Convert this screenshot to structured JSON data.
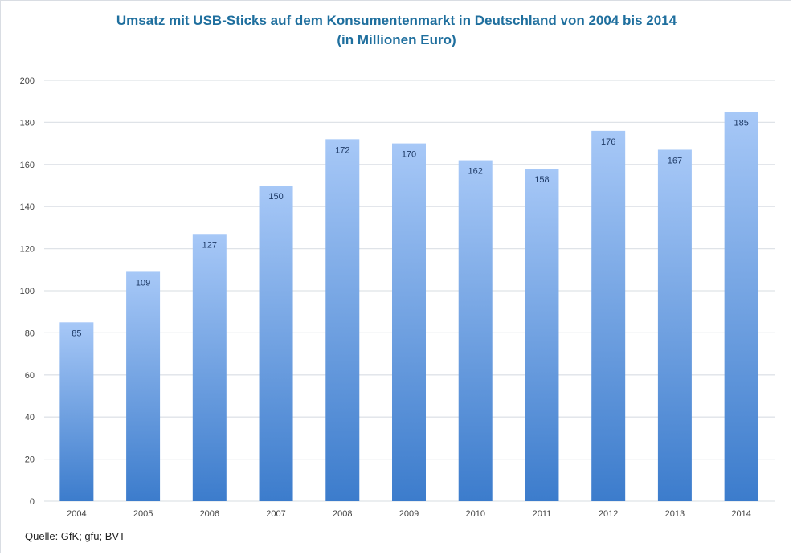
{
  "chart_data": {
    "type": "bar",
    "title": "Umsatz mit USB-Sticks auf dem Konsumentenmarkt  in Deutschland  von 2004 bis 2014",
    "subtitle": "(in Millionen  Euro)",
    "xlabel": "",
    "ylabel": "",
    "categories": [
      "2004",
      "2005",
      "2006",
      "2007",
      "2008",
      "2009",
      "2010",
      "2011",
      "2012",
      "2013",
      "2014"
    ],
    "values": [
      85,
      109,
      127,
      150,
      172,
      170,
      162,
      158,
      176,
      167,
      185
    ],
    "ylim": [
      0,
      200
    ],
    "yticks": [
      0,
      20,
      40,
      60,
      80,
      100,
      120,
      140,
      160,
      180,
      200
    ],
    "grid": true,
    "legend": "none",
    "data_labels": true,
    "colors": {
      "bar_top": "#a7c8f7",
      "bar_bottom": "#3c7ccc",
      "title": "#1f6f9e",
      "grid": "#dfe3e8",
      "label": "#1e3a66",
      "tick": "#444444"
    }
  },
  "source": "Quelle: GfK; gfu; BVT"
}
